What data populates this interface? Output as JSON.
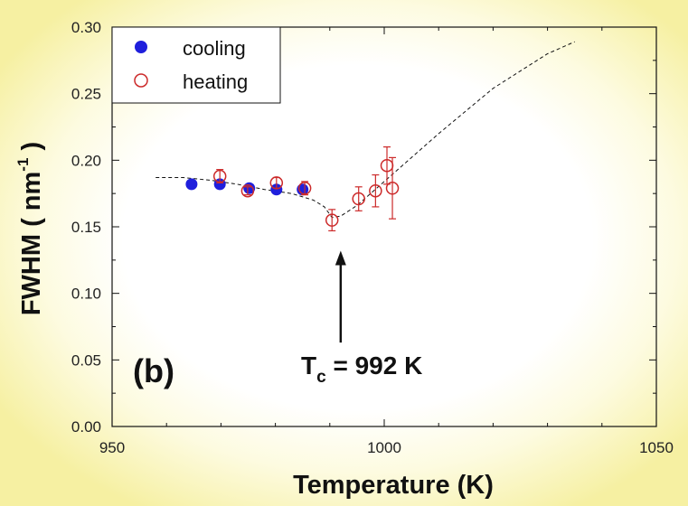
{
  "chart_data": {
    "type": "scatter",
    "xlabel": "Temperature  (K)",
    "ylabel_main": "FWHM  ( nm",
    "ylabel_sup": "-1",
    "ylabel_close": " )",
    "xlim": [
      950,
      1050
    ],
    "ylim": [
      0.0,
      0.3
    ],
    "x_ticks": [
      "950",
      "1000",
      "1050"
    ],
    "y_ticks": [
      "0.00",
      "0.05",
      "0.10",
      "0.15",
      "0.20",
      "0.25",
      "0.30"
    ],
    "panel_label": "(b)",
    "annotation": {
      "text_main": "T",
      "text_sub": "c",
      "text_rest": " = 992 K",
      "arrow_x": 992,
      "arrow_tip_y": 0.132,
      "arrow_tail_y": 0.063
    },
    "legend_position": "top-left",
    "series": [
      {
        "name": "cooling",
        "marker": "filled-circle",
        "color": "#1f1fdc",
        "points": [
          {
            "x": 964.6,
            "y": 0.182
          },
          {
            "x": 969.8,
            "y": 0.182
          },
          {
            "x": 975.2,
            "y": 0.179
          },
          {
            "x": 980.2,
            "y": 0.178
          },
          {
            "x": 985.0,
            "y": 0.178
          }
        ]
      },
      {
        "name": "heating",
        "marker": "open-circle",
        "color": "#cc2a2a",
        "points": [
          {
            "x": 969.8,
            "y": 0.188,
            "err": 0.005
          },
          {
            "x": 974.9,
            "y": 0.177,
            "err": 0.003
          },
          {
            "x": 980.2,
            "y": 0.183,
            "err": 0.004
          },
          {
            "x": 985.4,
            "y": 0.179,
            "err": 0.005
          },
          {
            "x": 990.4,
            "y": 0.155,
            "err": 0.008
          },
          {
            "x": 995.3,
            "y": 0.171,
            "err": 0.009
          },
          {
            "x": 998.4,
            "y": 0.177,
            "err": 0.012
          },
          {
            "x": 1000.5,
            "y": 0.196,
            "err": 0.014
          },
          {
            "x": 1001.5,
            "y": 0.179,
            "err": 0.023
          }
        ]
      }
    ],
    "fit_line": [
      [
        958,
        0.187
      ],
      [
        963,
        0.187
      ],
      [
        968,
        0.185
      ],
      [
        973,
        0.182
      ],
      [
        978,
        0.178
      ],
      [
        983,
        0.175
      ],
      [
        987,
        0.17
      ],
      [
        989,
        0.165
      ],
      [
        990.4,
        0.157
      ],
      [
        992,
        0.158
      ],
      [
        995,
        0.166
      ],
      [
        1000,
        0.184
      ],
      [
        1010,
        0.22
      ],
      [
        1020,
        0.254
      ],
      [
        1030,
        0.28
      ],
      [
        1035,
        0.289
      ]
    ]
  }
}
